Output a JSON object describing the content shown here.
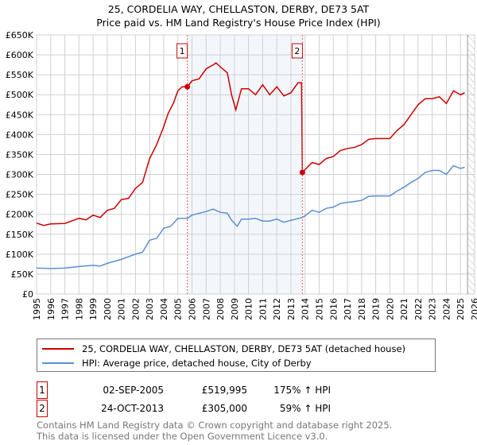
{
  "chart_data": {
    "type": "line",
    "title": "25, CORDELIA WAY, CHELLASTON, DERBY, DE73 5AT",
    "subtitle": "Price paid vs. HM Land Registry's House Price Index (HPI)",
    "xlim": [
      1995,
      2026
    ],
    "ylim": [
      0,
      650000
    ],
    "x_ticks": [
      "1995",
      "1996",
      "1997",
      "1998",
      "1999",
      "2000",
      "2001",
      "2002",
      "2003",
      "2004",
      "2005",
      "2006",
      "2007",
      "2008",
      "2009",
      "2010",
      "2011",
      "2012",
      "2013",
      "2014",
      "2015",
      "2016",
      "2017",
      "2018",
      "2019",
      "2020",
      "2021",
      "2022",
      "2023",
      "2024",
      "2025",
      "2026"
    ],
    "y_ticks": [
      {
        "v": 0,
        "label": "£0"
      },
      {
        "v": 50000,
        "label": "£50K"
      },
      {
        "v": 100000,
        "label": "£100K"
      },
      {
        "v": 150000,
        "label": "£150K"
      },
      {
        "v": 200000,
        "label": "£200K"
      },
      {
        "v": 250000,
        "label": "£250K"
      },
      {
        "v": 300000,
        "label": "£300K"
      },
      {
        "v": 350000,
        "label": "£350K"
      },
      {
        "v": 400000,
        "label": "£400K"
      },
      {
        "v": 450000,
        "label": "£450K"
      },
      {
        "v": 500000,
        "label": "£500K"
      },
      {
        "v": 550000,
        "label": "£550K"
      },
      {
        "v": 600000,
        "label": "£600K"
      },
      {
        "v": 650000,
        "label": "£650K"
      }
    ],
    "grid": true,
    "shaded_range": [
      2005.67,
      2013.81
    ],
    "forecast_from": 2025.5,
    "series": [
      {
        "name": "25, CORDELIA WAY, CHELLASTON, DERBY, DE73 5AT (detached house)",
        "color": "#cc0000",
        "x": [
          1995,
          1995.5,
          1996,
          1997,
          1998,
          1998.5,
          1999,
          1999.5,
          2000,
          2000.5,
          2001,
          2001.5,
          2002,
          2002.5,
          2003,
          2003.5,
          2004,
          2004.3,
          2004.7,
          2005,
          2005.3,
          2005.67,
          2006,
          2006.5,
          2007,
          2007.5,
          2007.7,
          2008,
          2008.5,
          2008.8,
          2009.1,
          2009.5,
          2010,
          2010.5,
          2011,
          2011.5,
          2012,
          2012.5,
          2013,
          2013.5,
          2013.75,
          2013.81,
          2014,
          2014.5,
          2015,
          2015.5,
          2016,
          2016.5,
          2017,
          2017.5,
          2018,
          2018.5,
          2019,
          2019.5,
          2020,
          2020.5,
          2021,
          2021.5,
          2022,
          2022.5,
          2023,
          2023.5,
          2024,
          2024.5,
          2025,
          2025.3
        ],
        "y": [
          178000,
          172000,
          176000,
          177000,
          190000,
          186000,
          198000,
          192000,
          210000,
          215000,
          237000,
          240000,
          265000,
          280000,
          340000,
          375000,
          420000,
          452000,
          480000,
          510000,
          520000,
          519995,
          535000,
          540000,
          565000,
          575000,
          580000,
          570000,
          555000,
          500000,
          462000,
          515000,
          515000,
          500000,
          525000,
          500000,
          520000,
          497000,
          505000,
          530000,
          530000,
          305000,
          312000,
          330000,
          325000,
          340000,
          345000,
          360000,
          365000,
          368000,
          375000,
          388000,
          390000,
          390000,
          390000,
          410000,
          425000,
          450000,
          475000,
          490000,
          490000,
          495000,
          478000,
          510000,
          500000,
          505000
        ]
      },
      {
        "name": "HPI: Average price, detached house, City of Derby",
        "color": "#5b8fd4",
        "x": [
          1995,
          1996,
          1997,
          1998,
          1999,
          1999.5,
          2000,
          2001,
          2002,
          2002.5,
          2003,
          2003.5,
          2004,
          2004.5,
          2005,
          2005.67,
          2006,
          2007,
          2007.5,
          2008,
          2008.5,
          2008.8,
          2009.2,
          2009.5,
          2010,
          2010.5,
          2011,
          2011.5,
          2012,
          2012.5,
          2013,
          2013.81,
          2014,
          2014.5,
          2015,
          2015.5,
          2016,
          2016.5,
          2017,
          2017.5,
          2018,
          2018.5,
          2019,
          2019.5,
          2020,
          2020.5,
          2021,
          2021.5,
          2022,
          2022.5,
          2023,
          2023.5,
          2024,
          2024.5,
          2025,
          2025.3
        ],
        "y": [
          65000,
          64000,
          65000,
          69000,
          72000,
          70000,
          77000,
          87000,
          100000,
          105000,
          135000,
          140000,
          165000,
          170000,
          190000,
          190000,
          198000,
          207000,
          213000,
          205000,
          203000,
          185000,
          170000,
          188000,
          188000,
          190000,
          183000,
          183000,
          188000,
          180000,
          185000,
          192000,
          196000,
          210000,
          205000,
          215000,
          218000,
          227000,
          230000,
          232000,
          235000,
          245000,
          246000,
          246000,
          246000,
          258000,
          268000,
          280000,
          290000,
          305000,
          310000,
          310000,
          300000,
          322000,
          315000,
          318000
        ]
      }
    ],
    "sales": [
      {
        "label": "1",
        "date": "02-SEP-2005",
        "x": 2005.67,
        "price": "£519,995",
        "price_value": 519995,
        "hpi": "175% ↑ HPI"
      },
      {
        "label": "2",
        "date": "24-OCT-2013",
        "x": 2013.81,
        "price": "£305,000",
        "price_value": 305000,
        "hpi": "59% ↑ HPI"
      }
    ]
  },
  "footer": {
    "line1": "Contains HM Land Registry data © Crown copyright and database right 2025.",
    "line2": "This data is licensed under the Open Government Licence v3.0."
  }
}
